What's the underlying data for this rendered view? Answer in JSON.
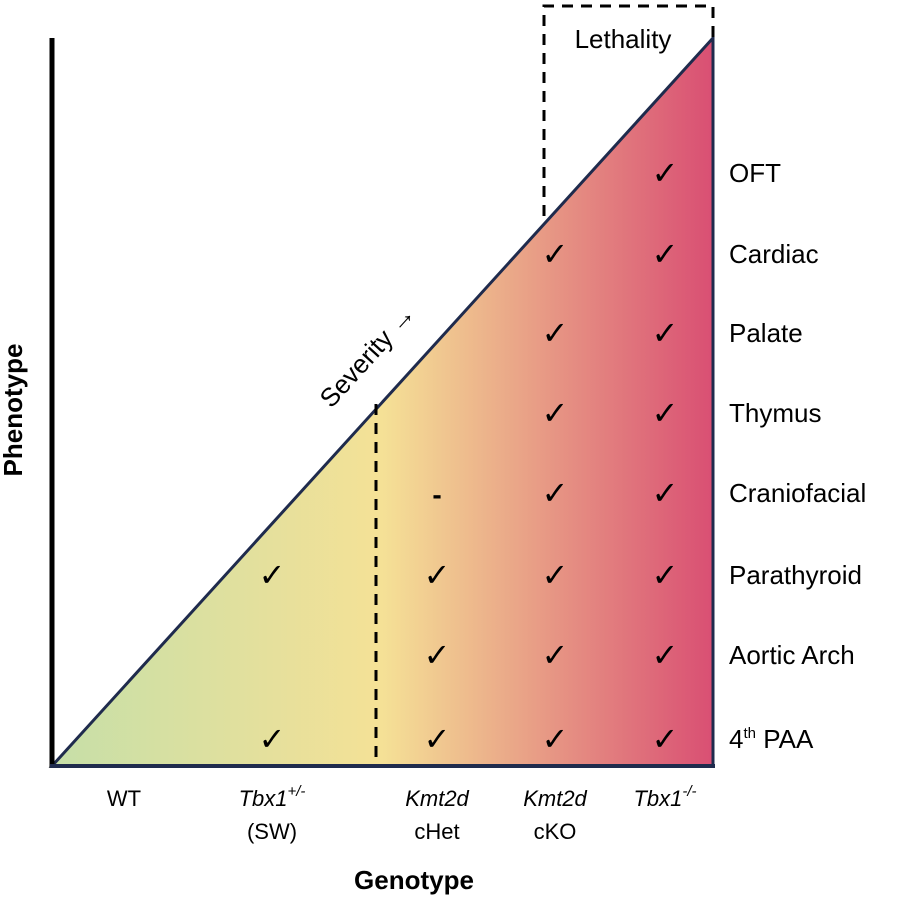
{
  "axes": {
    "y_title": "Phenotype",
    "x_title": "Genotype"
  },
  "severity_label": "Severity →",
  "lethality_label": "Lethality",
  "colors": {
    "gradient_start": "#c6dfa8",
    "gradient_mid": "#f5e196",
    "gradient_end": "#d94f73",
    "outline": "#1f2b4d"
  },
  "genotypes": [
    {
      "id": "wt",
      "line1": "WT",
      "line1_italic": false,
      "sup": "",
      "line2": ""
    },
    {
      "id": "tbx1-het",
      "line1": "Tbx1",
      "line1_italic": true,
      "sup": "+/-",
      "line2": "(SW)"
    },
    {
      "id": "kmt2d-chet",
      "line1": "Kmt2d",
      "line1_italic": true,
      "sup": "",
      "line2": "cHet"
    },
    {
      "id": "kmt2d-cko",
      "line1": "Kmt2d",
      "line1_italic": true,
      "sup": "",
      "line2": "cKO"
    },
    {
      "id": "tbx1-null",
      "line1": "Tbx1",
      "line1_italic": true,
      "sup": "-/-",
      "line2": ""
    }
  ],
  "phenotypes": [
    {
      "id": "oft",
      "label": "OFT",
      "sup": "",
      "label_rest": ""
    },
    {
      "id": "cardiac",
      "label": "Cardiac",
      "sup": "",
      "label_rest": ""
    },
    {
      "id": "palate",
      "label": "Palate",
      "sup": "",
      "label_rest": ""
    },
    {
      "id": "thymus",
      "label": "Thymus",
      "sup": "",
      "label_rest": ""
    },
    {
      "id": "craniofacial",
      "label": "Craniofacial",
      "sup": "",
      "label_rest": ""
    },
    {
      "id": "parathyroid",
      "label": "Parathyroid",
      "sup": "",
      "label_rest": ""
    },
    {
      "id": "aortic-arch",
      "label": "Aortic Arch",
      "sup": "",
      "label_rest": ""
    },
    {
      "id": "4th-paa",
      "label": "4",
      "sup": "th",
      "label_rest": " PAA"
    }
  ],
  "marks": {
    "check_symbol": "✓",
    "dash_symbol": "-",
    "grid": [
      [
        "",
        "",
        "",
        "",
        "✓"
      ],
      [
        "",
        "",
        "",
        "✓",
        "✓"
      ],
      [
        "",
        "",
        "",
        "✓",
        "✓"
      ],
      [
        "",
        "",
        "",
        "✓",
        "✓"
      ],
      [
        "",
        "",
        "-",
        "✓",
        "✓"
      ],
      [
        "",
        "✓",
        "✓",
        "✓",
        "✓"
      ],
      [
        "",
        "",
        "✓",
        "✓",
        "✓"
      ],
      [
        "",
        "✓",
        "✓",
        "✓",
        "✓"
      ]
    ]
  }
}
